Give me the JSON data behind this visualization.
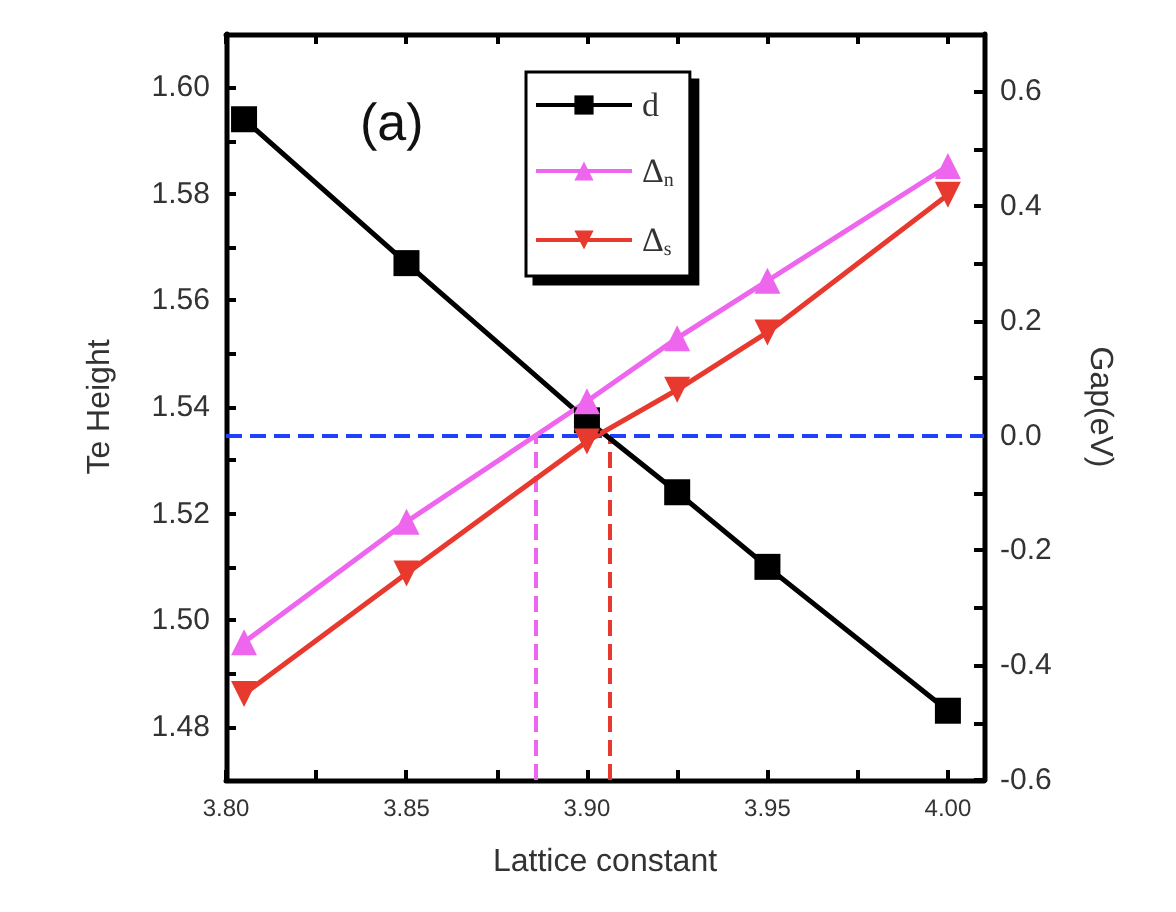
{
  "chart_data": {
    "type": "line",
    "xlabel": "Lattice constant",
    "ylabel": "Te Height",
    "y2label": "Gap(eV)",
    "annotations": [
      "(a)"
    ],
    "xlim": [
      3.8,
      4.01
    ],
    "xticks": [
      {
        "value": 3.8,
        "label": "3.80"
      },
      {
        "value": 3.825,
        "label": null
      },
      {
        "value": 3.85,
        "label": "3.85"
      },
      {
        "value": 3.875,
        "label": null
      },
      {
        "value": 3.9,
        "label": "3.90"
      },
      {
        "value": 3.925,
        "label": null
      },
      {
        "value": 3.95,
        "label": "3.95"
      },
      {
        "value": 3.975,
        "label": null
      },
      {
        "value": 4.0,
        "label": "4.00"
      }
    ],
    "ylim": [
      1.47,
      1.61
    ],
    "yticks": [
      1.48,
      {
        "value": 1.49,
        "label": null
      },
      {
        "value": 1.5,
        "label": "1.50"
      },
      {
        "value": 1.51,
        "label": null
      },
      1.52,
      {
        "value": 1.53,
        "label": null
      },
      1.54,
      {
        "value": 1.55,
        "label": null
      },
      1.56,
      {
        "value": 1.57,
        "label": null
      },
      1.58,
      {
        "value": 1.59,
        "label": null
      },
      {
        "value": 1.6,
        "label": "1.60"
      }
    ],
    "y2lim": [
      -0.6,
      0.7
    ],
    "y2ticks": [
      -0.6,
      {
        "value": -0.5,
        "label": null
      },
      -0.4,
      {
        "value": -0.3,
        "label": null
      },
      -0.2,
      {
        "value": -0.1,
        "label": null
      },
      {
        "value": 0,
        "label": "0.0"
      },
      {
        "value": 0.1,
        "label": null
      },
      0.2,
      {
        "value": 0.3,
        "label": null
      },
      0.4,
      {
        "value": 0.5,
        "label": null
      },
      0.6
    ],
    "series": [
      {
        "name": "d",
        "color": "#000000",
        "marker": "square",
        "x": [
          3.805,
          3.85,
          3.9,
          3.925,
          3.95,
          4.0
        ],
        "values": [
          1.594,
          1.567,
          1.5375,
          1.524,
          1.51,
          1.483
        ]
      },
      {
        "name": "Δ$_{n}$",
        "color": "#ee66ee",
        "marker": "triangle",
        "axis": "y2",
        "x": [
          3.805,
          3.85,
          3.9,
          3.925,
          3.95,
          4.0
        ],
        "values": [
          -0.36,
          -0.15,
          0.06,
          0.17,
          0.27,
          0.47
        ]
      },
      {
        "name": "Δ$_{s}$",
        "color": "#e8392f",
        "marker": "triangle-down",
        "axis": "y2",
        "x": [
          3.805,
          3.85,
          3.9,
          3.925,
          3.95,
          4.0
        ],
        "values": [
          -0.45,
          -0.24,
          -0.01,
          0.08,
          0.18,
          0.42
        ]
      }
    ],
    "ref_lines": [
      {
        "axis": "y2",
        "value": 0,
        "color": "#2040ff",
        "line_style": "dashed"
      },
      {
        "axis": "x",
        "value": 3.886,
        "color": "#ee66ee",
        "line_style": "dashed"
      },
      {
        "axis": "x",
        "value": 3.906,
        "color": "#e8392f",
        "line_style": "dashed"
      }
    ],
    "legend": "top",
    "line_style": "solid"
  }
}
